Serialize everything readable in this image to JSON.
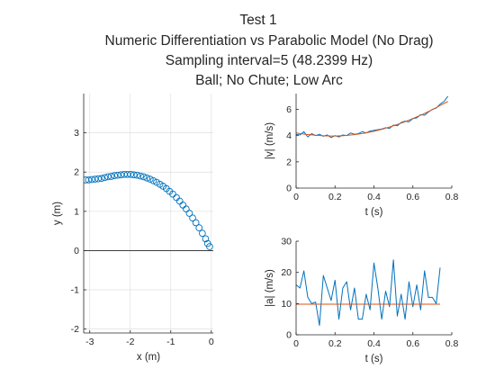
{
  "figure": {
    "title_lines": [
      "Test 1",
      "Numeric Differentiation vs Parabolic Model (No Drag)",
      "Sampling interval=5 (48.2399 Hz)",
      "Ball; No Chute; Low Arc"
    ]
  },
  "colors": {
    "series_blue": "#0072BD",
    "series_orange": "#D95319",
    "axis": "#262626",
    "grid": "#dfdfdf"
  },
  "chart_data": [
    {
      "id": "trajectory",
      "type": "scatter",
      "xlabel": "x (m)",
      "ylabel": "y (m)",
      "xlim": [
        -3.15,
        0.05
      ],
      "ylim": [
        -2.1,
        4.0
      ],
      "xticks": [
        -3,
        -2,
        -1,
        0
      ],
      "xtick_labels": [
        "-3",
        "-2",
        "-1",
        "0"
      ],
      "yticks": [
        -2,
        -1,
        0,
        1,
        2,
        3
      ],
      "ytick_labels": [
        "-2",
        "-1",
        "0",
        "1",
        "2",
        "3"
      ],
      "grid": true,
      "ground_line_y": 0,
      "series": [
        {
          "marker": "circle",
          "x": [
            -0.04,
            -0.09,
            -0.14,
            -0.22,
            -0.3,
            -0.38,
            -0.46,
            -0.54,
            -0.62,
            -0.7,
            -0.78,
            -0.86,
            -0.95,
            -1.03,
            -1.11,
            -1.19,
            -1.27,
            -1.35,
            -1.43,
            -1.51,
            -1.59,
            -1.67,
            -1.75,
            -1.83,
            -1.91,
            -1.99,
            -2.07,
            -2.15,
            -2.23,
            -2.31,
            -2.39,
            -2.47,
            -2.55,
            -2.63,
            -2.71,
            -2.79,
            -2.87,
            -2.95,
            -3.03,
            -3.1
          ],
          "y": [
            0.1,
            0.18,
            0.3,
            0.44,
            0.58,
            0.71,
            0.83,
            0.95,
            1.06,
            1.16,
            1.26,
            1.35,
            1.44,
            1.51,
            1.58,
            1.64,
            1.69,
            1.74,
            1.78,
            1.82,
            1.85,
            1.88,
            1.9,
            1.92,
            1.93,
            1.94,
            1.94,
            1.94,
            1.93,
            1.92,
            1.91,
            1.89,
            1.88,
            1.86,
            1.84,
            1.83,
            1.82,
            1.81,
            1.8,
            1.8
          ]
        }
      ]
    },
    {
      "id": "speed",
      "type": "line",
      "xlabel": "t (s)",
      "ylabel": "|v| (m/s)",
      "xlim": [
        0,
        0.8
      ],
      "ylim": [
        0,
        7.2
      ],
      "xticks": [
        0,
        0.2,
        0.4,
        0.6,
        0.8
      ],
      "xtick_labels": [
        "0",
        "0.2",
        "0.4",
        "0.6",
        "0.8"
      ],
      "yticks": [
        0,
        2,
        4,
        6
      ],
      "ytick_labels": [
        "0",
        "2",
        "4",
        "6"
      ],
      "grid": false,
      "series": [
        {
          "x": [
            0.0,
            0.02,
            0.04,
            0.06,
            0.08,
            0.1,
            0.12,
            0.14,
            0.16,
            0.18,
            0.2,
            0.22,
            0.24,
            0.26,
            0.28,
            0.3,
            0.32,
            0.34,
            0.36,
            0.38,
            0.4,
            0.42,
            0.44,
            0.46,
            0.48,
            0.5,
            0.52,
            0.54,
            0.56,
            0.58,
            0.6,
            0.62,
            0.64,
            0.66,
            0.68,
            0.7,
            0.72,
            0.74,
            0.76,
            0.78
          ],
          "y": [
            4.1,
            4.05,
            4.3,
            3.9,
            4.15,
            4.0,
            4.1,
            3.95,
            4.05,
            3.85,
            4.0,
            3.9,
            4.05,
            4.0,
            4.2,
            4.1,
            4.15,
            4.3,
            4.2,
            4.35,
            4.4,
            4.45,
            4.5,
            4.6,
            4.55,
            4.8,
            4.75,
            5.0,
            5.1,
            5.05,
            5.3,
            5.35,
            5.6,
            5.55,
            5.8,
            6.0,
            6.1,
            6.4,
            6.6,
            7.0
          ]
        },
        {
          "x": [
            0.0,
            0.05,
            0.1,
            0.15,
            0.2,
            0.25,
            0.3,
            0.35,
            0.4,
            0.45,
            0.5,
            0.55,
            0.6,
            0.65,
            0.7,
            0.75,
            0.78
          ],
          "y": [
            4.2,
            4.1,
            4.03,
            3.98,
            3.97,
            4.0,
            4.07,
            4.18,
            4.33,
            4.52,
            4.75,
            5.0,
            5.3,
            5.62,
            5.98,
            6.37,
            6.6
          ]
        }
      ]
    },
    {
      "id": "acceleration",
      "type": "line",
      "xlabel": "t (s)",
      "ylabel": "|a| (m/s)",
      "xlim": [
        0,
        0.8
      ],
      "ylim": [
        0,
        30
      ],
      "xticks": [
        0,
        0.2,
        0.4,
        0.6,
        0.8
      ],
      "xtick_labels": [
        "0",
        "0.2",
        "0.4",
        "0.6",
        "0.8"
      ],
      "yticks": [
        0,
        10,
        20,
        30
      ],
      "ytick_labels": [
        "0",
        "10",
        "20",
        "30"
      ],
      "grid": false,
      "series": [
        {
          "x": [
            0.0,
            0.02,
            0.04,
            0.06,
            0.08,
            0.1,
            0.12,
            0.14,
            0.16,
            0.18,
            0.2,
            0.22,
            0.24,
            0.26,
            0.28,
            0.3,
            0.32,
            0.34,
            0.36,
            0.38,
            0.4,
            0.42,
            0.44,
            0.46,
            0.48,
            0.5,
            0.52,
            0.54,
            0.56,
            0.58,
            0.6,
            0.62,
            0.64,
            0.66,
            0.68,
            0.7,
            0.72,
            0.74
          ],
          "y": [
            16,
            15,
            20.5,
            12,
            10,
            10.5,
            3,
            19,
            15,
            11,
            17.5,
            5,
            15,
            17,
            8,
            15,
            5,
            5,
            13,
            8,
            23,
            15,
            5,
            14,
            9,
            24,
            6,
            13,
            5,
            17,
            9,
            16,
            8,
            20.5,
            12,
            12,
            10,
            21.5
          ]
        },
        {
          "x": [
            0.0,
            0.74
          ],
          "y": [
            9.8,
            9.8
          ]
        }
      ]
    }
  ]
}
